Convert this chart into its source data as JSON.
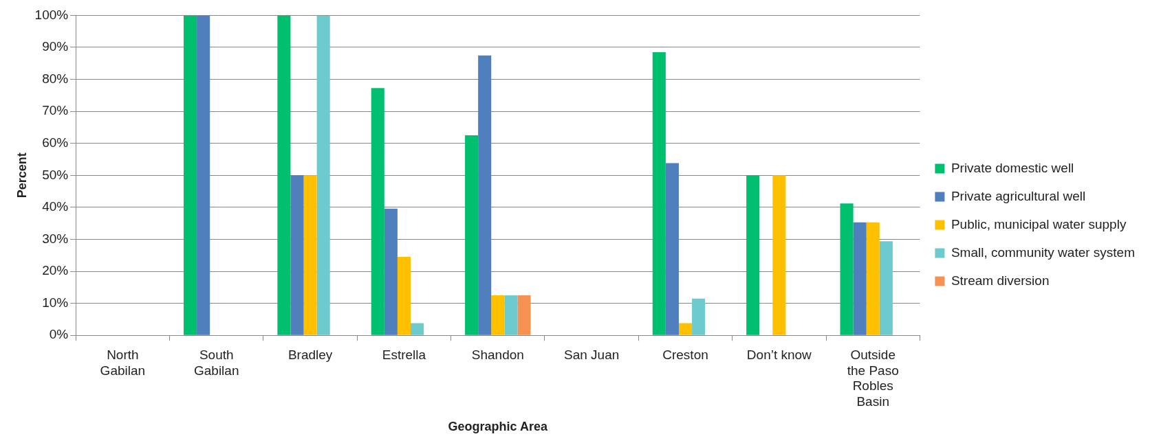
{
  "chart_data": {
    "type": "bar",
    "xlabel": "Geographic Area",
    "ylabel": "Percent",
    "categories": [
      "North Gabilan",
      "South Gabilan",
      "Bradley",
      "Estrella",
      "Shandon",
      "San Juan",
      "Creston",
      "Don’t know",
      "Outside the Paso Robles Basin"
    ],
    "series": [
      {
        "name": "Private domestic well",
        "color": "#00c070",
        "values": [
          0,
          100,
          100,
          77.3,
          62.5,
          0,
          88.5,
          50,
          41.2
        ]
      },
      {
        "name": "Private agricultural well",
        "color": "#4f7fbd",
        "values": [
          0,
          100,
          50,
          39.6,
          87.5,
          0,
          53.8,
          0,
          35.3
        ]
      },
      {
        "name": "Public, municipal water supply",
        "color": "#ffc000",
        "values": [
          0,
          0,
          50,
          24.5,
          12.5,
          0,
          3.8,
          50,
          35.3
        ]
      },
      {
        "name": "Small, community water system",
        "color": "#6ecbcd",
        "values": [
          0,
          0,
          100,
          3.8,
          12.5,
          0,
          11.5,
          0,
          29.4
        ]
      },
      {
        "name": "Stream diversion",
        "color": "#f79152",
        "values": [
          0,
          0,
          0,
          0,
          12.5,
          0,
          0,
          0,
          0
        ]
      }
    ],
    "ylim": [
      0,
      100
    ],
    "yticks": [
      {
        "value": 0,
        "label": "0%"
      },
      {
        "value": 10,
        "label": "10%"
      },
      {
        "value": 20,
        "label": "20%"
      },
      {
        "value": 30,
        "label": "30%"
      },
      {
        "value": 40,
        "label": "40%"
      },
      {
        "value": 50,
        "label": "50%"
      },
      {
        "value": 60,
        "label": "60%"
      },
      {
        "value": 70,
        "label": "70%"
      },
      {
        "value": 80,
        "label": "80%"
      },
      {
        "value": 90,
        "label": "90%"
      },
      {
        "value": 100,
        "label": "100%"
      }
    ],
    "grid": "y",
    "legend": "right"
  }
}
